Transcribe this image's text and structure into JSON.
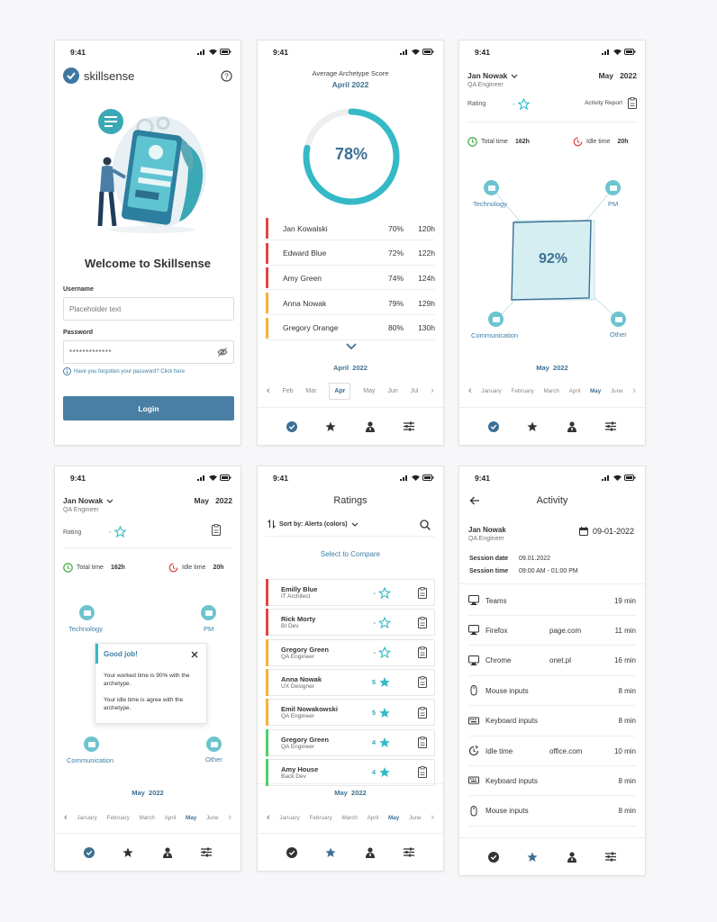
{
  "status_time": "9:41",
  "login": {
    "brand": "skillsense",
    "welcome": "Welcome to Skillsense",
    "username_label": "Username",
    "username_placeholder": "Placeholder text",
    "password_label": "Password",
    "password_value": "*************",
    "forgot": "Have you forgotten your password? Click here",
    "login_button": "Login"
  },
  "score": {
    "title": "Average Archetype Score",
    "period": "April 2022",
    "percent": "78%",
    "percent_value": 78,
    "rows": [
      {
        "name": "Jan Kowalski",
        "pct": "70%",
        "hours": "120h",
        "color": "#e04646"
      },
      {
        "name": "Edward Blue",
        "pct": "72%",
        "hours": "122h",
        "color": "#e04646"
      },
      {
        "name": "Amy Green",
        "pct": "74%",
        "hours": "124h",
        "color": "#e04646"
      },
      {
        "name": "Anna Nowak",
        "pct": "79%",
        "hours": "129h",
        "color": "#f5b041"
      },
      {
        "name": "Gregory Orange",
        "pct": "80%",
        "hours": "130h",
        "color": "#f5b041"
      }
    ],
    "period_month": "April",
    "period_year": "2022",
    "months": [
      "Feb",
      "Mar",
      "Apr",
      "May",
      "Jun",
      "Jul"
    ],
    "selected_month": "Apr"
  },
  "report": {
    "name": "Jan Nowak",
    "role": "QA Engineer",
    "month": "May",
    "year": "2022",
    "rating_label": "Rating",
    "rating_value": "-",
    "activity_report": "Activity Report",
    "total_label": "Total time",
    "total_value": "162h",
    "idle_label": "Idle time",
    "idle_value": "20h",
    "technology": "Technology",
    "pm": "PM",
    "communication": "Communication",
    "other": "Other",
    "radar_pct": "92%",
    "period_month": "May",
    "period_year": "2022",
    "months": [
      "January",
      "February",
      "March",
      "April",
      "May",
      "June"
    ],
    "selected_month": "May"
  },
  "popup": {
    "title": "Good job!",
    "line1": "Your worked time is 90% with the archetype.",
    "line2": "Your idle time is agree with the archetype."
  },
  "ratings": {
    "title": "Ratings",
    "sort": "Sort by: Alerts (colors)",
    "compare": "Select to Compare",
    "items": [
      {
        "name": "Emilly Blue",
        "role": "IT Architect",
        "score": "-",
        "filled": false,
        "color": "#e04646"
      },
      {
        "name": "Rick Morty",
        "role": "BI Dev",
        "score": "-",
        "filled": false,
        "color": "#e04646"
      },
      {
        "name": "Gregory Green",
        "role": "QA Engineer",
        "score": "-",
        "filled": false,
        "color": "#f5b041"
      },
      {
        "name": "Anna Nowak",
        "role": "UX Designer",
        "score": "5",
        "filled": true,
        "color": "#f5b041"
      },
      {
        "name": "Emil Nowakowski",
        "role": "QA Engineer",
        "score": "5",
        "filled": true,
        "color": "#f5b041"
      },
      {
        "name": "Gregory Green",
        "role": "QA Engineer",
        "score": "4",
        "filled": true,
        "color": "#4fcf6a"
      },
      {
        "name": "Amy House",
        "role": "Back Dev",
        "score": "4",
        "filled": true,
        "color": "#4fcf6a"
      }
    ],
    "period_month": "May",
    "period_year": "2022"
  },
  "activity": {
    "title": "Activity",
    "name": "Jan Nowak",
    "role": "QA Engineer",
    "date": "09-01-2022",
    "session_date_label": "Session date",
    "session_date": "09.01.2022",
    "session_time_label": "Session time",
    "session_time": "09:00 AM - 01:00 PM",
    "items": [
      {
        "icon": "monitor-icon",
        "name": "Teams",
        "detail": "",
        "time": "19 min"
      },
      {
        "icon": "monitor-icon",
        "name": "Firefox",
        "detail": "page.com",
        "time": "11 min"
      },
      {
        "icon": "monitor-icon",
        "name": "Chrome",
        "detail": "onet.pl",
        "time": "16 min"
      },
      {
        "icon": "mouse-icon",
        "name": "Mouse inputs",
        "detail": "",
        "time": "8 min"
      },
      {
        "icon": "keyboard-icon",
        "name": "Keyboard inputs",
        "detail": "",
        "time": "8 min"
      },
      {
        "icon": "idle-icon",
        "name": "Idle time",
        "detail": "office.com",
        "time": "10 min"
      },
      {
        "icon": "keyboard-icon",
        "name": "Keyboard inputs",
        "detail": "",
        "time": "8 min"
      },
      {
        "icon": "mouse-icon",
        "name": "Mouse inputs",
        "detail": "",
        "time": "8 min"
      }
    ]
  },
  "colors": {
    "primary": "#4a7fa5",
    "teal": "#35b9c6",
    "accent_blue": "#3d6f92"
  }
}
